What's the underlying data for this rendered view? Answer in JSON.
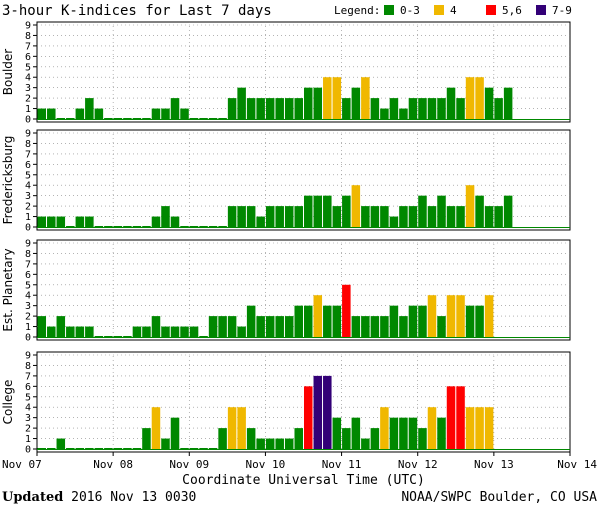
{
  "header": {
    "title": "3-hour K-indices for Last 7 days",
    "legend_label": "Legend:",
    "legend": [
      {
        "label": "0-3",
        "color": "#008800"
      },
      {
        "label": "4",
        "color": "#f0b800"
      },
      {
        "label": "5,6",
        "color": "#ff0000"
      },
      {
        "label": "7-9",
        "color": "#330077"
      }
    ]
  },
  "footer": {
    "updated_label": "Updated",
    "updated_value": "2016 Nov 13 0030",
    "source": "NOAA/SWPC Boulder, CO USA"
  },
  "chart_data": {
    "type": "bar",
    "title": "3-hour K-indices for Last 7 days",
    "xlabel": "Coordinate Universal Time (UTC)",
    "x_ticks": [
      "Nov 07",
      "Nov 08",
      "Nov 09",
      "Nov 10",
      "Nov 11",
      "Nov 12",
      "Nov 13",
      "Nov 14"
    ],
    "ylim": [
      0,
      9
    ],
    "y_ticks": [
      0,
      1,
      2,
      3,
      4,
      5,
      6,
      7,
      8,
      9
    ],
    "grid": "dotted horizontal",
    "color_scale": {
      "0-3": "#008800",
      "4": "#f0b800",
      "5,6": "#ff0000",
      "7-9": "#330077"
    },
    "panels": [
      {
        "label": "Boulder",
        "values": [
          1,
          1,
          0,
          0,
          1,
          2,
          1,
          0,
          0,
          0,
          0,
          0,
          1,
          1,
          2,
          1,
          0,
          0,
          0,
          0,
          2,
          3,
          2,
          2,
          2,
          2,
          2,
          2,
          3,
          3,
          4,
          4,
          2,
          3,
          4,
          2,
          1,
          2,
          1,
          2,
          2,
          2,
          2,
          3,
          2,
          4,
          4,
          3,
          2,
          3
        ]
      },
      {
        "label": "Fredericksburg",
        "values": [
          1,
          1,
          1,
          0,
          1,
          1,
          0,
          0,
          0,
          0,
          0,
          0,
          1,
          2,
          1,
          0,
          0,
          0,
          0,
          0,
          2,
          2,
          2,
          1,
          2,
          2,
          2,
          2,
          3,
          3,
          3,
          2,
          3,
          4,
          2,
          2,
          2,
          1,
          2,
          2,
          3,
          2,
          3,
          2,
          2,
          4,
          3,
          2,
          2,
          3
        ]
      },
      {
        "label": "Est. Planetary",
        "values": [
          2,
          1,
          2,
          1,
          1,
          1,
          0,
          0,
          0,
          0,
          1,
          1,
          2,
          1,
          1,
          1,
          1,
          0,
          2,
          2,
          2,
          1,
          3,
          2,
          2,
          2,
          2,
          3,
          3,
          4,
          3,
          3,
          5,
          2,
          2,
          2,
          2,
          3,
          2,
          3,
          3,
          4,
          2,
          4,
          4,
          3,
          3,
          4
        ]
      },
      {
        "label": "College",
        "values": [
          0,
          0,
          1,
          0,
          0,
          0,
          0,
          0,
          0,
          0,
          0,
          2,
          4,
          1,
          3,
          0,
          0,
          0,
          0,
          2,
          4,
          4,
          2,
          1,
          1,
          1,
          1,
          2,
          6,
          7,
          7,
          3,
          2,
          3,
          1,
          2,
          4,
          3,
          3,
          3,
          2,
          4,
          3,
          6,
          6,
          4,
          4,
          4
        ]
      }
    ]
  }
}
